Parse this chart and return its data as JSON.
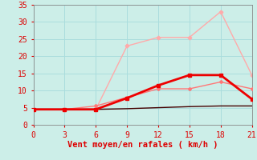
{
  "bg_color": "#cceee8",
  "grid_color": "#aadddd",
  "xlabel": "Vent moyen/en rafales ( km/h )",
  "xlabel_color": "#dd0000",
  "xlabel_fontsize": 7.5,
  "tick_color": "#dd0000",
  "tick_fontsize": 7,
  "xlim": [
    0,
    21
  ],
  "ylim": [
    0,
    35
  ],
  "xticks": [
    0,
    3,
    6,
    9,
    12,
    15,
    18,
    21
  ],
  "yticks": [
    0,
    5,
    10,
    15,
    20,
    25,
    30,
    35
  ],
  "lines": [
    {
      "x": [
        0,
        3,
        6,
        9,
        12,
        15,
        18,
        21
      ],
      "y": [
        4.5,
        4.5,
        4.5,
        23.0,
        25.5,
        25.5,
        33.0,
        14.5
      ],
      "color": "#ffaaaa",
      "lw": 1.0,
      "marker": "P",
      "markersize": 3,
      "zorder": 2
    },
    {
      "x": [
        0,
        3,
        6,
        9,
        12,
        15,
        18,
        21
      ],
      "y": [
        4.5,
        4.5,
        5.5,
        8.0,
        10.5,
        10.5,
        12.5,
        10.5
      ],
      "color": "#ff7777",
      "lw": 1.0,
      "marker": "D",
      "markersize": 2,
      "zorder": 3
    },
    {
      "x": [
        0,
        3,
        6,
        9,
        12,
        15,
        18,
        21
      ],
      "y": [
        4.5,
        4.5,
        4.5,
        7.8,
        11.5,
        14.5,
        14.5,
        7.5
      ],
      "color": "#ee0000",
      "lw": 2.0,
      "marker": "s",
      "markersize": 3,
      "zorder": 4
    },
    {
      "x": [
        0,
        3,
        6,
        9,
        12,
        15,
        18,
        21
      ],
      "y": [
        4.5,
        4.5,
        4.5,
        4.7,
        5.0,
        5.3,
        5.5,
        5.5
      ],
      "color": "#440000",
      "lw": 1.0,
      "marker": null,
      "markersize": 0,
      "zorder": 2
    }
  ]
}
